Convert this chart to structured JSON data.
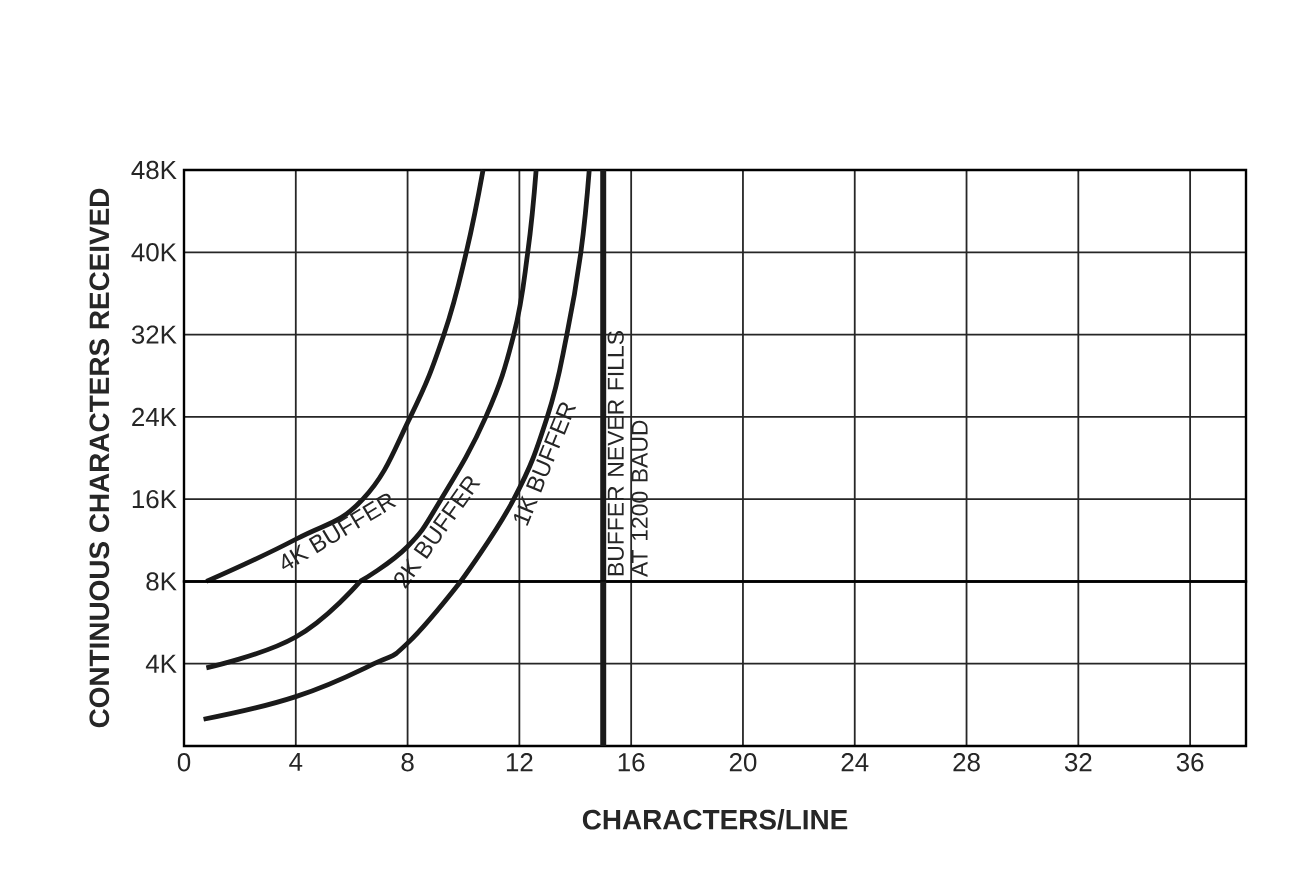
{
  "chart_data": [
    {
      "type": "line",
      "ylabel": "CONTINUOUS CHARACTERS RECEIVED",
      "xlim": [
        0,
        38
      ],
      "xticks": [
        0,
        4,
        8,
        12,
        16,
        20,
        24,
        28,
        32,
        36
      ],
      "ylim": [
        8,
        48
      ],
      "yticks": [
        {
          "value": 16,
          "label": "16K"
        },
        {
          "value": 24,
          "label": "24K"
        },
        {
          "value": 32,
          "label": "32K"
        },
        {
          "value": 40,
          "label": "40K"
        },
        {
          "value": 48,
          "label": "48K"
        }
      ],
      "tick_labels": "y",
      "grid": true,
      "marker": "none",
      "line_style": "solid",
      "series": [
        {
          "name": "4K BUFFER",
          "color": "#1a1a1a",
          "x": [
            0.8,
            4,
            6.4,
            8.1,
            9.3,
            10.1,
            10.7
          ],
          "values": [
            8,
            12.1,
            16,
            24,
            32,
            40,
            48
          ]
        },
        {
          "name": "2K BUFFER",
          "color": "#1a1a1a",
          "x": [
            6.3,
            8,
            9.2,
            10.8,
            11.8,
            12.3,
            12.6
          ],
          "values": [
            8,
            11.4,
            16,
            24,
            32,
            40,
            48
          ]
        },
        {
          "name": "1K BUFFER",
          "color": "#1a1a1a",
          "x": [
            9.9,
            11.8,
            13,
            13.7,
            14.2,
            14.5
          ],
          "values": [
            8,
            16,
            24,
            32,
            40,
            48
          ]
        }
      ],
      "ref_lines": [
        {
          "axis": "x",
          "value": 15,
          "label": "BUFFER NEVER FILLS AT 1200 BAUD",
          "color": "#1a1a1a"
        }
      ]
    },
    {
      "type": "line",
      "xlabel": "CHARACTERS/LINE",
      "xlim": [
        0,
        38
      ],
      "xticks": [
        0,
        4,
        8,
        12,
        16,
        20,
        24,
        28,
        32,
        36
      ],
      "ylim": [
        0,
        8
      ],
      "yticks": [
        {
          "value": 4,
          "label": "4K"
        },
        {
          "value": 8,
          "label": "8K"
        }
      ],
      "grid": true,
      "marker": "none",
      "line_style": "solid",
      "series": [
        {
          "color": "#1a1a1a",
          "x": [
            0.8,
            4,
            6.3
          ],
          "values": [
            3.8,
            5.3,
            8
          ]
        },
        {
          "color": "#1a1a1a",
          "x": [
            0.7,
            4,
            6.8,
            8,
            9.9
          ],
          "values": [
            1.3,
            2.4,
            4,
            5,
            8
          ]
        }
      ],
      "ref_lines": [
        {
          "axis": "x",
          "value": 15,
          "color": "#1a1a1a"
        }
      ]
    }
  ]
}
